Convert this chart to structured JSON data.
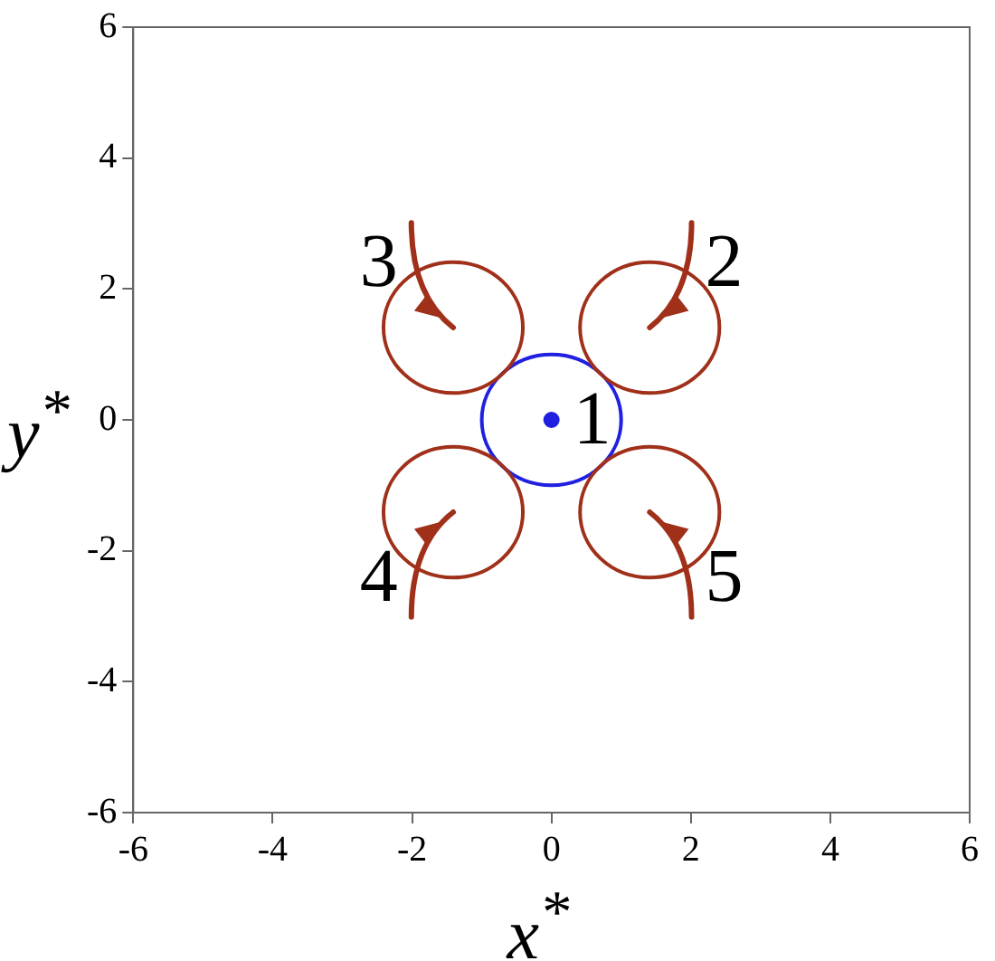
{
  "chart_data": {
    "type": "scatter",
    "xlabel": "x$^{*}$",
    "ylabel": "y$^{*}$",
    "xlim": [
      -6,
      6
    ],
    "ylim": [
      -6,
      6
    ],
    "xticks": [
      -6,
      -4,
      -2,
      0,
      2,
      4,
      6
    ],
    "yticks": [
      -6,
      -4,
      -2,
      0,
      2,
      4,
      6
    ],
    "marker": "circle",
    "grid": false,
    "legend": false,
    "series": [
      {
        "color": "#2020e0",
        "x": [
          0
        ],
        "values": [
          0
        ]
      }
    ],
    "annotations": [
      "1",
      "2",
      "3",
      "4",
      "5"
    ]
  }
}
